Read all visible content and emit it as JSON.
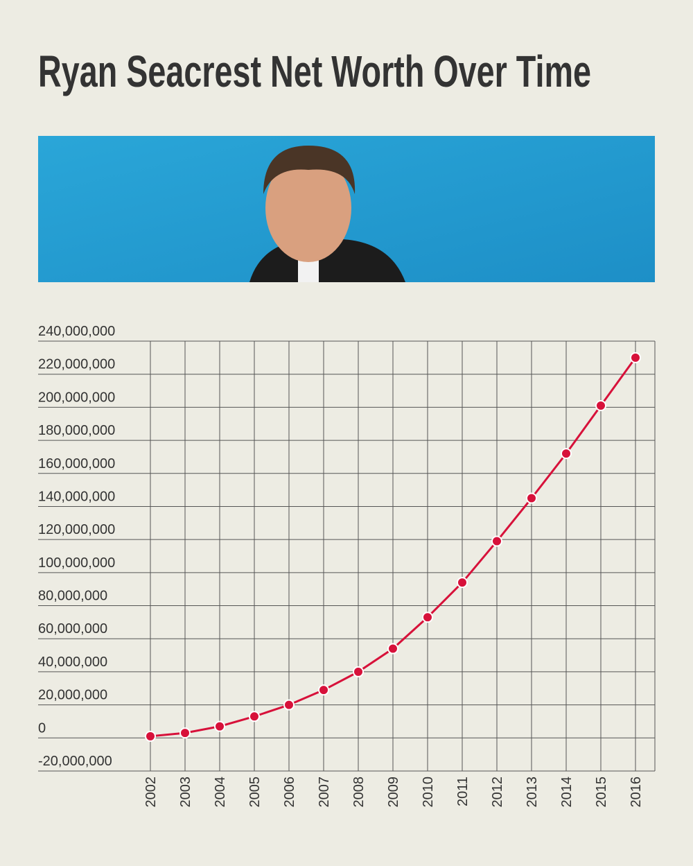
{
  "chart_data": {
    "type": "line",
    "title": "Ryan Seacrest Net Worth Over Time",
    "categories": [
      "2002",
      "2003",
      "2004",
      "2005",
      "2006",
      "2007",
      "2008",
      "2009",
      "2010",
      "2011",
      "2012",
      "2013",
      "2014",
      "2015",
      "2016"
    ],
    "series": [
      {
        "color": "#d7113a",
        "values": [
          1000000,
          3000000,
          7000000,
          13000000,
          20000000,
          29000000,
          40000000,
          54000000,
          73000000,
          94000000,
          119000000,
          145000000,
          172000000,
          201000000,
          230000000
        ]
      }
    ],
    "ylim": [
      -20000000,
      240000000
    ],
    "yticks": [
      {
        "value": -20000000,
        "label": "-20,000,000"
      },
      0,
      {
        "value": 20000000,
        "label": "20,000,000"
      },
      {
        "value": 40000000,
        "label": "40,000,000"
      },
      {
        "value": 60000000,
        "label": "60,000,000"
      },
      {
        "value": 80000000,
        "label": "80,000,000"
      },
      {
        "value": 100000000,
        "label": "100,000,000"
      },
      {
        "value": 120000000,
        "label": "120,000,000"
      },
      {
        "value": 140000000,
        "label": "140,000,000"
      },
      {
        "value": 160000000,
        "label": "160,000,000"
      },
      {
        "value": 180000000,
        "label": "180,000,000"
      },
      {
        "value": 200000000,
        "label": "200,000,000"
      },
      {
        "value": 220000000,
        "label": "220,000,000"
      },
      {
        "value": 240000000,
        "label": "240,000,000"
      }
    ],
    "grid": true
  }
}
